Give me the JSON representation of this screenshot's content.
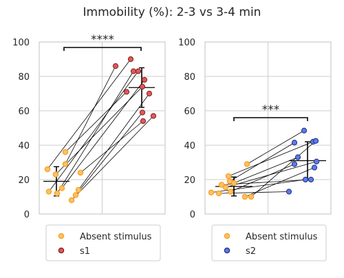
{
  "title": "Immobility (%): 2-3 vs 3-4 min",
  "colors": {
    "absent_face": "#f6c26b",
    "absent_edge": "#ff9f1c",
    "s1_face": "#e15759",
    "s1_edge": "#7f1d1d",
    "s2_face": "#5b7bea",
    "s2_edge": "#1f2a7a",
    "grid": "#cccccc",
    "frame": "#cccccc",
    "line": "#000000"
  },
  "chart_data": [
    {
      "type": "scatter",
      "ylim": [
        0,
        100
      ],
      "yticks": [
        "0",
        "20",
        "40",
        "60",
        "80",
        "100"
      ],
      "grid": true,
      "legend_position": "below",
      "significance": "****",
      "series": [
        {
          "name": "Absent stimulus",
          "values": [
            26,
            13,
            23,
            12,
            15,
            29,
            36,
            8,
            11,
            14,
            24
          ]
        },
        {
          "name": "s1",
          "values": [
            86,
            90,
            83,
            83,
            78,
            71,
            74,
            70,
            59,
            54,
            57
          ]
        }
      ],
      "pairs": [
        [
          0,
          1
        ],
        [
          1,
          3
        ],
        [
          2,
          6
        ],
        [
          3,
          2
        ],
        [
          4,
          4
        ],
        [
          5,
          0
        ],
        [
          6,
          5
        ],
        [
          7,
          10
        ],
        [
          8,
          8
        ],
        [
          9,
          7
        ],
        [
          10,
          9
        ]
      ],
      "summary": [
        {
          "mean": 19,
          "error": 8.5
        },
        {
          "mean": 73.5,
          "error": 11.5
        }
      ]
    },
    {
      "type": "scatter",
      "ylim": [
        0,
        100
      ],
      "yticks": [
        "0",
        "20",
        "40",
        "60",
        "80",
        "100"
      ],
      "grid": true,
      "legend_position": "below",
      "significance": "***",
      "series": [
        {
          "name": "Absent stimulus",
          "values": [
            12.5,
            12,
            17,
            15.5,
            22,
            19,
            18,
            13,
            10,
            29,
            10
          ]
        },
        {
          "name": "s2",
          "values": [
            48.5,
            42,
            42.5,
            41.5,
            33,
            30.5,
            29,
            27,
            20,
            20,
            13
          ]
        }
      ],
      "pairs": [
        [
          0,
          8
        ],
        [
          1,
          10
        ],
        [
          2,
          9
        ],
        [
          3,
          5
        ],
        [
          4,
          1
        ],
        [
          5,
          3
        ],
        [
          6,
          4
        ],
        [
          7,
          6
        ],
        [
          8,
          7
        ],
        [
          9,
          0
        ],
        [
          10,
          2
        ]
      ],
      "summary": [
        {
          "mean": 16,
          "error": 5.5
        },
        {
          "mean": 31,
          "error": 11
        }
      ]
    }
  ]
}
